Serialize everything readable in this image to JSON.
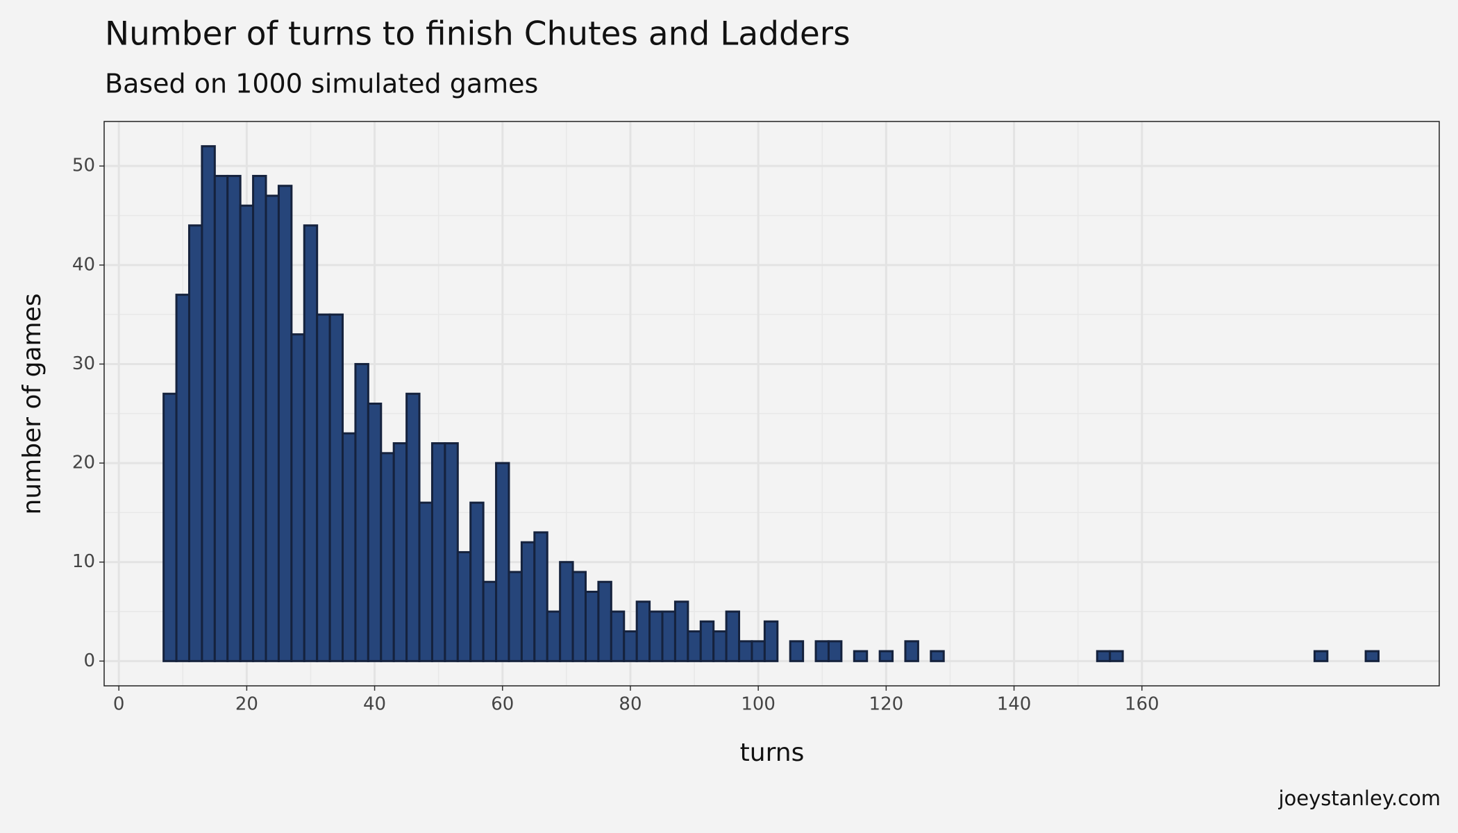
{
  "chart_data": {
    "type": "histogram",
    "title": "Number of turns to finish Chutes and Ladders",
    "subtitle": "Based on 1000 simulated games",
    "x_label": "turns",
    "y_label": "number of games",
    "caption": "joeystanley.com",
    "bins": [
      7,
      9,
      11,
      13,
      15,
      17,
      19,
      21,
      23,
      25,
      27,
      29,
      31,
      33,
      35,
      37,
      39,
      41,
      43,
      45,
      47,
      49,
      51,
      53,
      55,
      57,
      59,
      61,
      63,
      65,
      67,
      69,
      71,
      73,
      75,
      77,
      79,
      81,
      83,
      85,
      87,
      89,
      91,
      93,
      95,
      97,
      99,
      101,
      103,
      105,
      107,
      109,
      111,
      113,
      115,
      117,
      119,
      121,
      123,
      125,
      127,
      129,
      131,
      133,
      135,
      137,
      139,
      141,
      143,
      145,
      147,
      149,
      151,
      153,
      155,
      157,
      159,
      161,
      163,
      165,
      167,
      169,
      171,
      173,
      175,
      177,
      179,
      181,
      183,
      185,
      187,
      189,
      191,
      193,
      195,
      197
    ],
    "values": [
      27,
      37,
      44,
      52,
      49,
      49,
      46,
      49,
      47,
      48,
      33,
      44,
      35,
      35,
      23,
      30,
      26,
      21,
      22,
      27,
      16,
      22,
      22,
      11,
      16,
      8,
      20,
      9,
      12,
      13,
      5,
      10,
      9,
      7,
      8,
      5,
      3,
      6,
      5,
      5,
      6,
      3,
      4,
      3,
      5,
      2,
      2,
      4,
      0,
      2,
      0,
      2,
      2,
      0,
      1,
      0,
      1,
      0,
      2,
      0,
      1,
      0,
      0,
      0,
      0,
      0,
      0,
      0,
      0,
      0,
      0,
      0,
      0,
      1,
      1,
      0,
      0,
      0,
      0,
      0,
      0,
      0,
      0,
      0,
      0,
      0,
      0,
      0,
      0,
      0,
      1,
      0,
      0,
      0,
      1
    ],
    "color": "#26457a",
    "edge_color": "#15223d",
    "xlim": [
      -2.3,
      206.5
    ],
    "xticks": [
      0,
      20,
      40,
      60,
      80,
      100,
      120,
      140,
      160
    ],
    "ylim": [
      -2.5,
      54.5
    ],
    "yticks": [
      0,
      10,
      20,
      30,
      40,
      50
    ],
    "grid": true
  }
}
